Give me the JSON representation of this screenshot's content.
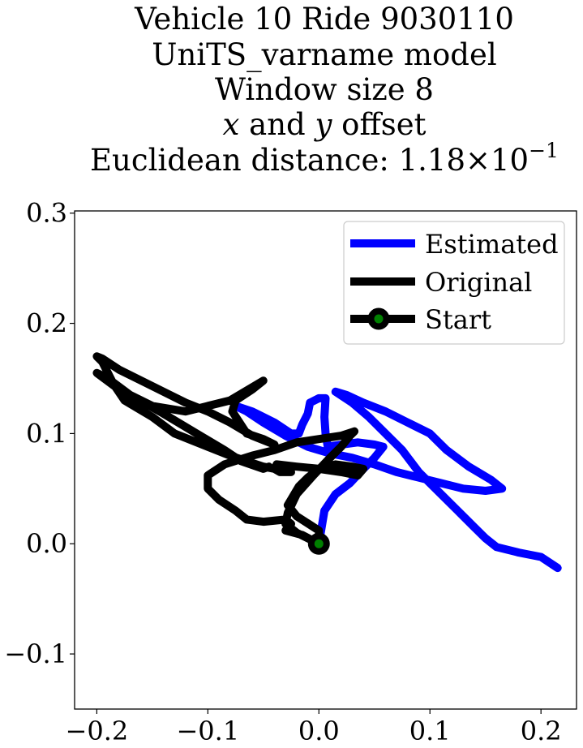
{
  "chart_data": {
    "type": "line",
    "title_lines": [
      "Vehicle 10 Ride 9030110",
      "UniTS_varname model",
      "Window size 8"
    ],
    "title_var_x": "x",
    "title_var_mid": " and ",
    "title_var_y": "y",
    "title_var_end": " offset",
    "title_dist_prefix": "Euclidean distance: 1.18",
    "title_dist_times": "×",
    "title_dist_base": "10",
    "title_dist_exp": "−1",
    "xlabel": "",
    "ylabel": "",
    "xlim": [
      -0.22,
      0.232
    ],
    "ylim": [
      -0.15,
      0.302
    ],
    "xticks": [
      -0.2,
      -0.1,
      0.0,
      0.1,
      0.2
    ],
    "xtick_labels": [
      "−0.2",
      "−0.1",
      "0.0",
      "0.1",
      "0.2"
    ],
    "yticks": [
      -0.1,
      0.0,
      0.1,
      0.2,
      0.3
    ],
    "ytick_labels": [
      "−0.1",
      "0.0",
      "0.1",
      "0.2",
      "0.3"
    ],
    "grid": false,
    "legend_position": "top-right",
    "series": [
      {
        "name": "Estimated",
        "color": "#0000ff",
        "points": [
          [
            0.0,
            0.0
          ],
          [
            0.005,
            0.03
          ],
          [
            0.015,
            0.045
          ],
          [
            0.028,
            0.055
          ],
          [
            0.04,
            0.068
          ],
          [
            0.05,
            0.078
          ],
          [
            0.058,
            0.088
          ],
          [
            0.05,
            0.09
          ],
          [
            0.035,
            0.092
          ],
          [
            0.02,
            0.09
          ],
          [
            0.008,
            0.088
          ],
          [
            0.006,
            0.1
          ],
          [
            0.005,
            0.115
          ],
          [
            0.006,
            0.132
          ],
          [
            0.0,
            0.132
          ],
          [
            -0.008,
            0.128
          ],
          [
            -0.01,
            0.118
          ],
          [
            -0.015,
            0.108
          ],
          [
            -0.018,
            0.1
          ],
          [
            -0.025,
            0.1
          ],
          [
            -0.04,
            0.11
          ],
          [
            -0.06,
            0.12
          ],
          [
            -0.075,
            0.125
          ],
          [
            -0.065,
            0.12
          ],
          [
            -0.05,
            0.11
          ],
          [
            -0.03,
            0.098
          ],
          [
            -0.01,
            0.088
          ],
          [
            0.01,
            0.082
          ],
          [
            0.03,
            0.078
          ],
          [
            0.05,
            0.072
          ],
          [
            0.07,
            0.065
          ],
          [
            0.09,
            0.06
          ],
          [
            0.11,
            0.055
          ],
          [
            0.13,
            0.05
          ],
          [
            0.15,
            0.048
          ],
          [
            0.165,
            0.05
          ],
          [
            0.155,
            0.058
          ],
          [
            0.135,
            0.07
          ],
          [
            0.115,
            0.085
          ],
          [
            0.1,
            0.1
          ],
          [
            0.08,
            0.11
          ],
          [
            0.06,
            0.12
          ],
          [
            0.04,
            0.128
          ],
          [
            0.025,
            0.135
          ],
          [
            0.015,
            0.138
          ],
          [
            0.03,
            0.128
          ],
          [
            0.045,
            0.115
          ],
          [
            0.06,
            0.1
          ],
          [
            0.075,
            0.085
          ],
          [
            0.09,
            0.065
          ],
          [
            0.11,
            0.045
          ],
          [
            0.125,
            0.03
          ],
          [
            0.14,
            0.015
          ],
          [
            0.15,
            0.005
          ],
          [
            0.16,
            -0.003
          ],
          [
            0.18,
            -0.008
          ],
          [
            0.2,
            -0.012
          ],
          [
            0.215,
            -0.022
          ]
        ]
      },
      {
        "name": "Original",
        "color": "#000000",
        "points": [
          [
            0.0,
            0.0
          ],
          [
            -0.02,
            0.01
          ],
          [
            -0.03,
            0.018
          ],
          [
            -0.028,
            0.028
          ],
          [
            -0.02,
            0.045
          ],
          [
            -0.005,
            0.062
          ],
          [
            0.01,
            0.078
          ],
          [
            0.02,
            0.088
          ],
          [
            0.028,
            0.098
          ],
          [
            0.032,
            0.102
          ],
          [
            0.02,
            0.098
          ],
          [
            0.0,
            0.095
          ],
          [
            -0.02,
            0.092
          ],
          [
            -0.04,
            0.085
          ],
          [
            -0.06,
            0.08
          ],
          [
            -0.085,
            0.072
          ],
          [
            -0.1,
            0.062
          ],
          [
            -0.1,
            0.05
          ],
          [
            -0.09,
            0.04
          ],
          [
            -0.075,
            0.03
          ],
          [
            -0.065,
            0.022
          ],
          [
            -0.05,
            0.02
          ],
          [
            -0.03,
            0.022
          ],
          [
            -0.025,
            0.018
          ],
          [
            -0.03,
            0.012
          ],
          [
            -0.015,
            0.008
          ],
          [
            0.0,
            0.0
          ],
          [
            0.0,
            0.012
          ],
          [
            -0.02,
            0.025
          ],
          [
            -0.028,
            0.035
          ],
          [
            -0.018,
            0.052
          ],
          [
            -0.01,
            0.06
          ],
          [
            0.0,
            0.068
          ],
          [
            0.015,
            0.072
          ],
          [
            0.03,
            0.07
          ],
          [
            0.04,
            0.068
          ],
          [
            0.035,
            0.062
          ],
          [
            0.02,
            0.065
          ],
          [
            0.0,
            0.068
          ],
          [
            -0.02,
            0.07
          ],
          [
            -0.038,
            0.072
          ],
          [
            -0.04,
            0.068
          ],
          [
            -0.035,
            0.065
          ],
          [
            -0.025,
            0.065
          ],
          [
            -0.05,
            0.07
          ],
          [
            -0.08,
            0.08
          ],
          [
            -0.1,
            0.088
          ],
          [
            -0.13,
            0.1
          ],
          [
            -0.15,
            0.115
          ],
          [
            -0.175,
            0.13
          ],
          [
            -0.185,
            0.145
          ],
          [
            -0.195,
            0.165
          ],
          [
            -0.2,
            0.17
          ],
          [
            -0.195,
            0.168
          ],
          [
            -0.18,
            0.158
          ],
          [
            -0.16,
            0.148
          ],
          [
            -0.14,
            0.138
          ],
          [
            -0.12,
            0.128
          ],
          [
            -0.1,
            0.12
          ],
          [
            -0.08,
            0.11
          ],
          [
            -0.06,
            0.098
          ],
          [
            -0.04,
            0.09
          ],
          [
            -0.05,
            0.095
          ],
          [
            -0.065,
            0.1
          ],
          [
            -0.078,
            0.12
          ],
          [
            -0.075,
            0.13
          ],
          [
            -0.06,
            0.14
          ],
          [
            -0.05,
            0.148
          ],
          [
            -0.06,
            0.142
          ],
          [
            -0.08,
            0.13
          ],
          [
            -0.1,
            0.125
          ],
          [
            -0.12,
            0.12
          ],
          [
            -0.15,
            0.125
          ],
          [
            -0.18,
            0.14
          ],
          [
            -0.2,
            0.155
          ],
          [
            -0.198,
            0.154
          ],
          [
            -0.19,
            0.15
          ],
          [
            -0.17,
            0.135
          ],
          [
            -0.14,
            0.118
          ],
          [
            -0.11,
            0.1
          ],
          [
            -0.085,
            0.085
          ],
          [
            -0.07,
            0.075
          ],
          [
            -0.05,
            0.068
          ],
          [
            -0.045,
            0.07
          ]
        ]
      }
    ],
    "start_marker": {
      "name": "Start",
      "x": 0.0,
      "y": 0.0,
      "ring_color": "#000000",
      "fill_color": "#008000"
    }
  }
}
